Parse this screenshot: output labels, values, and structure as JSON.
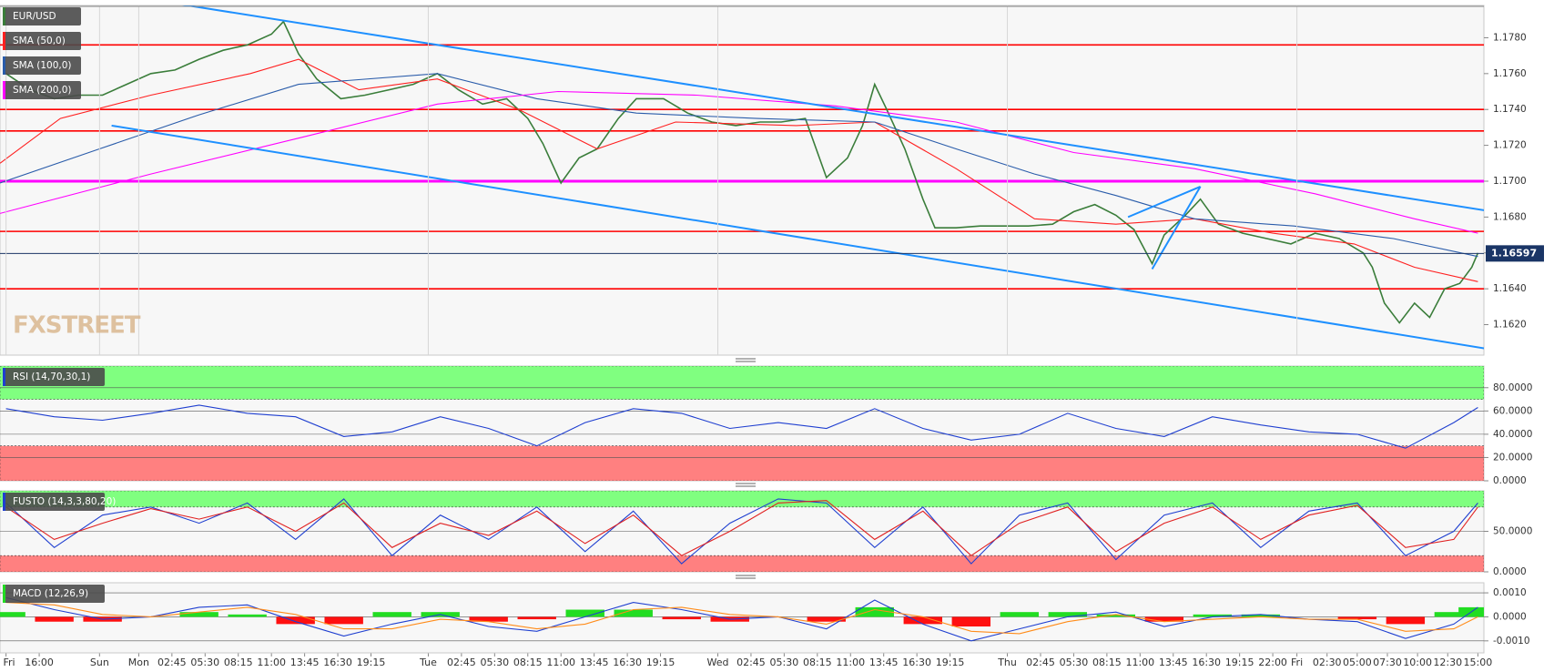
{
  "chart_data": [
    {
      "type": "line",
      "title": "EUR/USD",
      "xlim": [
        -0.5,
        122.5
      ],
      "ylim": [
        1.1603,
        1.1798
      ],
      "xticks": [
        {
          "value": 0,
          "label": "Fri"
        },
        {
          "value": 2.75,
          "label": "16:00"
        },
        {
          "value": 7.75,
          "label": "Sun"
        },
        {
          "value": 11,
          "label": "Mon"
        },
        {
          "value": 13.75,
          "label": "02:45"
        },
        {
          "value": 16.5,
          "label": "05:30"
        },
        {
          "value": 19.25,
          "label": "08:15"
        },
        {
          "value": 22,
          "label": "11:00"
        },
        {
          "value": 24.75,
          "label": "13:45"
        },
        {
          "value": 27.5,
          "label": "16:30"
        },
        {
          "value": 30.25,
          "label": "19:15"
        },
        {
          "value": 35,
          "label": "Tue"
        },
        {
          "value": 37.75,
          "label": "02:45"
        },
        {
          "value": 40.5,
          "label": "05:30"
        },
        {
          "value": 43.25,
          "label": "08:15"
        },
        {
          "value": 46,
          "label": "11:00"
        },
        {
          "value": 48.75,
          "label": "13:45"
        },
        {
          "value": 51.5,
          "label": "16:30"
        },
        {
          "value": 54.25,
          "label": "19:15"
        },
        {
          "value": 59,
          "label": "Wed"
        },
        {
          "value": 61.75,
          "label": "02:45"
        },
        {
          "value": 64.5,
          "label": "05:30"
        },
        {
          "value": 67.25,
          "label": "08:15"
        },
        {
          "value": 70,
          "label": "11:00"
        },
        {
          "value": 72.75,
          "label": "13:45"
        },
        {
          "value": 75.5,
          "label": "16:30"
        },
        {
          "value": 78.25,
          "label": "19:15"
        },
        {
          "value": 83,
          "label": "Thu"
        },
        {
          "value": 85.75,
          "label": "02:45"
        },
        {
          "value": 88.5,
          "label": "05:30"
        },
        {
          "value": 91.25,
          "label": "08:15"
        },
        {
          "value": 94,
          "label": "11:00"
        },
        {
          "value": 96.75,
          "label": "13:45"
        },
        {
          "value": 99.5,
          "label": "16:30"
        },
        {
          "value": 102.25,
          "label": "19:15"
        },
        {
          "value": 105,
          "label": "22:00"
        },
        {
          "value": 107,
          "label": "Fri"
        },
        {
          "value": 109.5,
          "label": "02:30"
        },
        {
          "value": 112,
          "label": "05:00"
        },
        {
          "value": 114.5,
          "label": "07:30"
        },
        {
          "value": 117,
          "label": "10:00"
        },
        {
          "value": 119.5,
          "label": "12:30"
        },
        {
          "value": 122,
          "label": "15:00"
        }
      ],
      "yticks": [
        {
          "value": 1.162,
          "label": "1.1620"
        },
        {
          "value": 1.164,
          "label": "1.1640"
        },
        {
          "value": 1.166,
          "label": "1.1660"
        },
        {
          "value": 1.168,
          "label": "1.1680"
        },
        {
          "value": 1.17,
          "label": "1.1700"
        },
        {
          "value": 1.172,
          "label": "1.1720"
        },
        {
          "value": 1.174,
          "label": "1.1740"
        },
        {
          "value": 1.176,
          "label": "1.1760"
        },
        {
          "value": 1.178,
          "label": "1.1780"
        }
      ],
      "hlines": [
        {
          "value": 1.1776,
          "color": "#ff0000"
        },
        {
          "value": 1.174,
          "color": "#ff0000"
        },
        {
          "value": 1.1728,
          "color": "#ff0000"
        },
        {
          "value": 1.17,
          "color": "#ff00ff"
        },
        {
          "value": 1.1672,
          "color": "#ff0000"
        },
        {
          "value": 1.164,
          "color": "#ff0000"
        }
      ],
      "trendlines": [
        {
          "x": [
            12.25,
            123.25
          ],
          "y": [
            1.1801,
            1.1683
          ],
          "color": "#1e90ff"
        },
        {
          "x": [
            8.75,
            123.25
          ],
          "y": [
            1.1731,
            1.1606
          ],
          "color": "#1e90ff"
        },
        {
          "x": [
            93,
            99
          ],
          "y": [
            1.168,
            1.1697
          ],
          "color": "#1e90ff"
        },
        {
          "x": [
            95,
            99
          ],
          "y": [
            1.1651,
            1.1697
          ],
          "color": "#1e90ff"
        }
      ],
      "last_price": 1.16597,
      "series": [
        {
          "color": "#3a7d3a",
          "x": [
            0,
            2,
            4,
            6,
            8,
            10,
            12,
            14,
            16,
            18,
            20,
            22,
            23,
            24.25,
            25.75,
            27.75,
            29.75,
            31.75,
            33.75,
            35.75,
            37.5,
            39.5,
            41.5,
            43.25,
            44.5,
            46,
            47.5,
            49,
            50.75,
            52.25,
            54.5,
            56.5,
            58.5,
            60.5,
            62.5,
            64.25,
            66.25,
            68,
            69.75,
            71,
            72,
            73,
            74.5,
            76,
            77,
            78.75,
            80.75,
            82.75,
            84.75,
            86.75,
            88.5,
            90.25,
            92,
            93.5,
            95,
            96,
            97.75,
            99,
            100.5,
            102.5,
            104.5,
            106.5,
            108.5,
            110.5,
            112.5,
            113.25,
            114.25,
            115.5,
            116.75,
            118,
            119.25,
            120.5,
            121.5,
            122
          ],
          "values": [
            1.176,
            1.1751,
            1.1746,
            1.1748,
            1.1748,
            1.1754,
            1.176,
            1.1762,
            1.1768,
            1.1773,
            1.1776,
            1.1782,
            1.1789,
            1.1771,
            1.1757,
            1.1746,
            1.1748,
            1.1751,
            1.1754,
            1.176,
            1.1751,
            1.1743,
            1.1746,
            1.1735,
            1.1721,
            1.1699,
            1.1713,
            1.1718,
            1.1735,
            1.1746,
            1.1746,
            1.1738,
            1.1733,
            1.1731,
            1.1733,
            1.1733,
            1.1735,
            1.1702,
            1.1713,
            1.1731,
            1.1754,
            1.174,
            1.1718,
            1.169,
            1.1674,
            1.1674,
            1.1675,
            1.1675,
            1.1675,
            1.1676,
            1.1683,
            1.1687,
            1.1681,
            1.1673,
            1.1654,
            1.167,
            1.1681,
            1.169,
            1.1676,
            1.1671,
            1.1668,
            1.1665,
            1.1671,
            1.1668,
            1.166,
            1.1652,
            1.1632,
            1.1621,
            1.1632,
            1.1624,
            1.164,
            1.1643,
            1.1652,
            1.166
          ]
        },
        {
          "name": "SMA (50,0)",
          "color": "#ff2020",
          "x": [
            -0.5,
            4.5,
            12,
            20.25,
            24.25,
            29.25,
            35.75,
            42.5,
            49,
            55.5,
            65.5,
            72,
            78.75,
            85.25,
            92,
            98.5,
            105,
            111.75,
            116.75,
            122
          ],
          "values": [
            1.171,
            1.1735,
            1.1748,
            1.176,
            1.1768,
            1.1751,
            1.1757,
            1.174,
            1.1718,
            1.1733,
            1.1731,
            1.1733,
            1.1707,
            1.1679,
            1.1676,
            1.1679,
            1.1671,
            1.1665,
            1.1652,
            1.1644
          ]
        },
        {
          "name": "SMA (100,0)",
          "color": "#2a5caa",
          "x": [
            -0.5,
            7.75,
            16,
            24.25,
            35.75,
            44,
            52.25,
            62.25,
            72,
            78.75,
            85.25,
            92,
            98.5,
            106.75,
            115,
            122
          ],
          "values": [
            1.1699,
            1.1718,
            1.1737,
            1.1754,
            1.176,
            1.1746,
            1.1738,
            1.1735,
            1.1733,
            1.1718,
            1.1704,
            1.1692,
            1.1679,
            1.1675,
            1.1668,
            1.1658
          ]
        },
        {
          "name": "SMA (200,0)",
          "color": "#ff00ff",
          "x": [
            -0.5,
            12,
            24.25,
            35.75,
            45.75,
            57.25,
            68.75,
            78.75,
            88.5,
            98.5,
            108.5,
            116.75,
            122
          ],
          "values": [
            1.1682,
            1.1704,
            1.1724,
            1.1743,
            1.175,
            1.1748,
            1.1742,
            1.1733,
            1.1716,
            1.1707,
            1.1693,
            1.1679,
            1.1671
          ]
        }
      ]
    },
    {
      "type": "line",
      "title": "RSI (14,70,30,1)",
      "ylim": [
        0,
        98.6
      ],
      "yticks": [
        {
          "value": 0,
          "label": "0.0000"
        },
        {
          "value": 20,
          "label": "20.0000"
        },
        {
          "value": 40,
          "label": "40.0000"
        },
        {
          "value": 60,
          "label": "60.0000"
        },
        {
          "value": 80,
          "label": "80.0000"
        }
      ],
      "bands": [
        {
          "range": [
            70,
            98.6
          ],
          "color": "#80ff80"
        },
        {
          "range": [
            0,
            30
          ],
          "color": "#ff8080"
        }
      ],
      "series": [
        {
          "color": "#1f3fd0",
          "x": [
            0,
            4,
            8,
            12,
            16,
            20,
            24,
            28,
            32,
            36,
            40,
            44,
            48,
            52,
            56,
            60,
            64,
            68,
            72,
            76,
            80,
            84,
            88,
            92,
            96,
            100,
            104,
            108,
            112,
            116,
            120,
            122
          ],
          "values": [
            62,
            55,
            52,
            58,
            65,
            58,
            55,
            38,
            42,
            55,
            45,
            30,
            50,
            62,
            58,
            45,
            50,
            45,
            62,
            45,
            35,
            40,
            58,
            45,
            38,
            55,
            48,
            42,
            40,
            28,
            50,
            63
          ]
        }
      ]
    },
    {
      "type": "line",
      "title": "FUSTO (14,3,3,80,20)",
      "ylim": [
        0,
        100
      ],
      "yticks": [
        {
          "value": 0,
          "label": "0.0000"
        },
        {
          "value": 50,
          "label": "50.0000"
        }
      ],
      "bands": [
        {
          "range": [
            80,
            100
          ],
          "color": "#80ff80"
        },
        {
          "range": [
            0,
            20
          ],
          "color": "#ff8080"
        }
      ],
      "series": [
        {
          "color": "#1f3fd0",
          "x": [
            0,
            4,
            8,
            12,
            16,
            20,
            24,
            28,
            32,
            36,
            40,
            44,
            48,
            52,
            56,
            60,
            64,
            68,
            72,
            76,
            80,
            84,
            88,
            92,
            96,
            100,
            104,
            108,
            112,
            116,
            120,
            122
          ],
          "values": [
            85,
            30,
            70,
            80,
            60,
            85,
            40,
            90,
            20,
            70,
            40,
            80,
            25,
            75,
            10,
            60,
            90,
            85,
            30,
            80,
            10,
            70,
            85,
            15,
            70,
            85,
            30,
            75,
            85,
            20,
            50,
            85
          ]
        },
        {
          "color": "#e02020",
          "x": [
            0,
            4,
            8,
            12,
            16,
            20,
            24,
            28,
            32,
            36,
            40,
            44,
            48,
            52,
            56,
            60,
            64,
            68,
            72,
            76,
            80,
            84,
            88,
            92,
            96,
            100,
            104,
            108,
            112,
            116,
            120,
            122
          ],
          "values": [
            80,
            40,
            60,
            78,
            65,
            80,
            50,
            85,
            30,
            60,
            45,
            75,
            35,
            70,
            20,
            50,
            85,
            88,
            40,
            75,
            20,
            60,
            80,
            25,
            60,
            80,
            40,
            70,
            82,
            30,
            40,
            80
          ]
        }
      ]
    },
    {
      "type": "line",
      "title": "MACD (12,26,9)",
      "ylim": [
        -0.0015,
        0.00142
      ],
      "yticks": [
        {
          "value": -0.001,
          "label": "-0.0010"
        },
        {
          "value": 0,
          "label": "0.0000"
        },
        {
          "value": 0.001,
          "label": "0.0010"
        }
      ],
      "series": [
        {
          "type": "bar",
          "color": "#22dd22",
          "negative_color": "#ff1010",
          "x": [
            0,
            4,
            8,
            12,
            16,
            20,
            24,
            28,
            32,
            36,
            40,
            44,
            48,
            52,
            56,
            60,
            64,
            68,
            72,
            76,
            80,
            84,
            88,
            92,
            96,
            100,
            104,
            108,
            112,
            116,
            120,
            122
          ],
          "values": [
            0.0002,
            -0.0002,
            -0.0002,
            0,
            0.0002,
            0.0001,
            -0.0003,
            -0.0003,
            0.0002,
            0.0002,
            -0.0002,
            -0.0001,
            0.0003,
            0.0003,
            -0.0001,
            -0.0002,
            0,
            -0.0002,
            0.0004,
            -0.0003,
            -0.0004,
            0.0002,
            0.0002,
            0.0001,
            -0.0002,
            0.0001,
            0.0001,
            0,
            -0.0001,
            -0.0003,
            0.0002,
            0.0004
          ]
        },
        {
          "color": "#1f3fd0",
          "x": [
            0,
            4,
            8,
            12,
            16,
            20,
            24,
            28,
            32,
            36,
            40,
            44,
            48,
            52,
            56,
            60,
            64,
            68,
            72,
            76,
            80,
            84,
            88,
            92,
            96,
            100,
            104,
            108,
            112,
            116,
            120,
            122
          ],
          "values": [
            0.0008,
            0.0003,
            -0.0001,
            0,
            0.0004,
            0.0005,
            -0.0002,
            -0.0008,
            -0.0003,
            0.0001,
            -0.0004,
            -0.0006,
            0,
            0.0006,
            0.0003,
            -0.0001,
            0,
            -0.0005,
            0.0007,
            -0.0003,
            -0.001,
            -0.0005,
            0,
            0.0002,
            -0.0004,
            0,
            0.0001,
            -0.0001,
            -0.0002,
            -0.0009,
            -0.0003,
            0.0004
          ]
        },
        {
          "color": "#ff8c1a",
          "x": [
            0,
            4,
            8,
            12,
            16,
            20,
            24,
            28,
            32,
            36,
            40,
            44,
            48,
            52,
            56,
            60,
            64,
            68,
            72,
            76,
            80,
            84,
            88,
            92,
            96,
            100,
            104,
            108,
            112,
            116,
            120,
            122
          ],
          "values": [
            0.0006,
            0.0005,
            0.0001,
            0,
            0.0002,
            0.0004,
            0.0001,
            -0.0005,
            -0.0005,
            -0.0001,
            -0.0002,
            -0.0005,
            -0.0003,
            0.0003,
            0.0004,
            0.0001,
            0,
            -0.0003,
            0.0003,
            0,
            -0.0006,
            -0.0007,
            -0.0002,
            0.0001,
            -0.0002,
            -0.0001,
            0,
            -0.0001,
            -0.0001,
            -0.0006,
            -0.0005,
            0
          ]
        }
      ]
    }
  ]
}
